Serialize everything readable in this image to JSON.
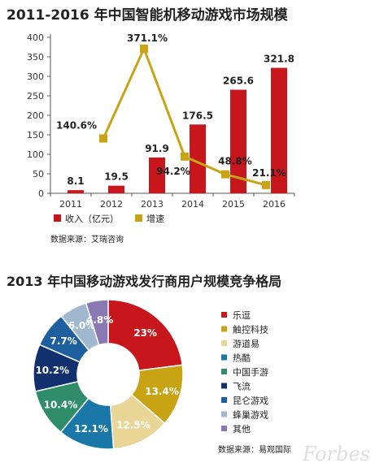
{
  "chart_data": [
    {
      "type": "bar+line",
      "title": "2011-2016 年中国智能机移动游戏市场规模",
      "categories": [
        "2011",
        "2012",
        "2013",
        "2014",
        "2015",
        "2016"
      ],
      "y_ticks": [
        "0",
        "50",
        "100",
        "150",
        "200",
        "250",
        "300",
        "350",
        "400"
      ],
      "ylim": [
        0,
        400
      ],
      "series": [
        {
          "name": "收入（亿元）",
          "kind": "bar",
          "color": "#c8161d",
          "values": [
            8.1,
            19.5,
            91.9,
            176.5,
            265.6,
            321.8
          ],
          "labels": [
            "8.1",
            "19.5",
            "91.9",
            "176.5",
            "265.6",
            "321.8"
          ]
        },
        {
          "name": "增速",
          "kind": "line",
          "color": "#c8a415",
          "values": [
            null,
            140.6,
            371.1,
            94.2,
            48.8,
            21.1
          ],
          "labels": [
            "",
            "140.6%",
            "371.1%",
            "94.2%",
            "48.8%",
            "21.1%"
          ]
        }
      ],
      "source": "数据来源：艾瑞咨询"
    },
    {
      "type": "pie",
      "title": "2013 年中国移动游戏发行商用户规模竞争格局",
      "slices": [
        {
          "label": "乐逗",
          "value": 23,
          "text": "23%",
          "color": "#c8161d",
          "textColor": "#ffffff"
        },
        {
          "label": "触控科技",
          "value": 13.4,
          "text": "13.4%",
          "color": "#c8a415",
          "textColor": "#ffffff"
        },
        {
          "label": "游道易",
          "value": 12.5,
          "text": "12.5%",
          "color": "#e9d596",
          "textColor": "#ffffff"
        },
        {
          "label": "热酷",
          "value": 12.1,
          "text": "12.1%",
          "color": "#1a78a8",
          "textColor": "#ffffff"
        },
        {
          "label": "中国手游",
          "value": 10.4,
          "text": "10.4%",
          "color": "#2f8d6a",
          "textColor": "#ffffff"
        },
        {
          "label": "飞流",
          "value": 10.2,
          "text": "10.2%",
          "color": "#13306e",
          "textColor": "#ffffff"
        },
        {
          "label": "昆仑游戏",
          "value": 7.7,
          "text": "7.7%",
          "color": "#1e5fa0",
          "textColor": "#ffffff"
        },
        {
          "label": "蜂巢游戏",
          "value": 6.0,
          "text": "6.0%",
          "color": "#9fb7cf",
          "textColor": "#ffffff"
        },
        {
          "label": "其他",
          "value": 4.8,
          "text": "4.8%",
          "color": "#8a78b4",
          "textColor": "#ffffff"
        }
      ],
      "source": "数据来源：易观国际"
    }
  ],
  "watermark": "Forbes"
}
